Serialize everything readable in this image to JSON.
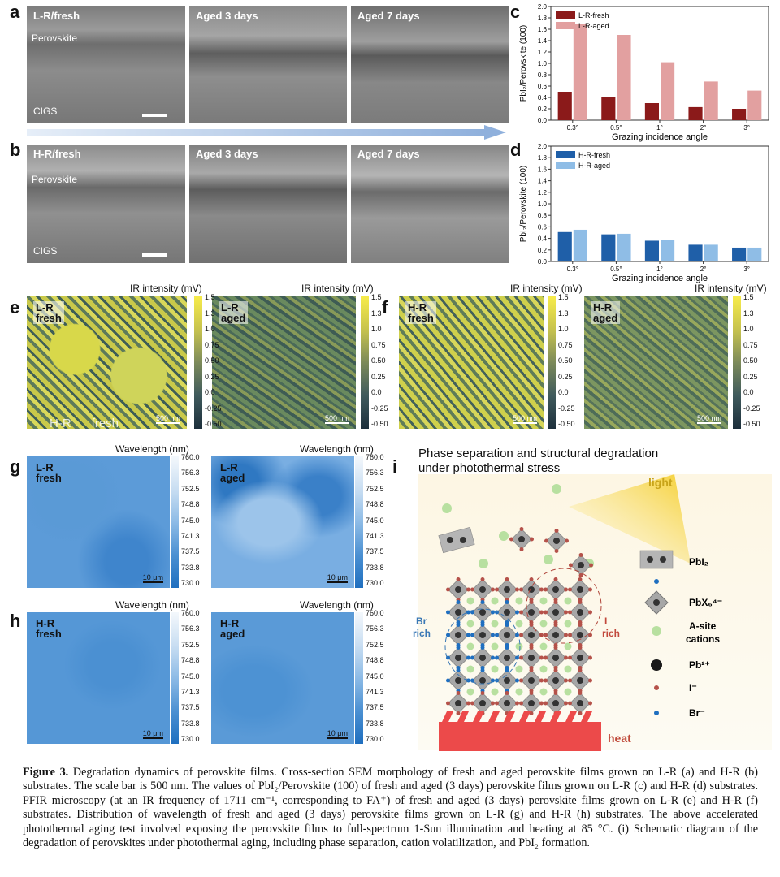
{
  "panels": {
    "a": "a",
    "b": "b",
    "c": "c",
    "d": "d",
    "e": "e",
    "f": "f",
    "g": "g",
    "h": "h",
    "i": "i"
  },
  "sem_a": [
    {
      "label": "L-R/fresh"
    },
    {
      "label": "Aged 3 days"
    },
    {
      "label": "Aged 7 days"
    }
  ],
  "sem_b": [
    {
      "label": "H-R/fresh"
    },
    {
      "label": "Aged 3 days"
    },
    {
      "label": "Aged 7 days"
    }
  ],
  "layers": {
    "perovskite": "Perovskite",
    "cigs": "CIGS"
  },
  "chart_data": [
    {
      "type": "bar",
      "panel": "c",
      "categories": [
        "0.3°",
        "0.5°",
        "1°",
        "2°",
        "3°"
      ],
      "series": [
        {
          "name": "L-R-fresh",
          "values": [
            0.5,
            0.4,
            0.3,
            0.23,
            0.2
          ],
          "color": "#8b1a1a"
        },
        {
          "name": "L-R-aged",
          "values": [
            1.7,
            1.5,
            1.02,
            0.68,
            0.52
          ],
          "color": "#e2a0a0"
        }
      ],
      "ylabel": "PbI₂/Perovskite (100)",
      "xlabel": "Grazing incidence angle",
      "ylim": [
        0,
        2.0
      ],
      "yticks": [
        "0.0",
        "0.2",
        "0.4",
        "0.6",
        "0.8",
        "1.0",
        "1.2",
        "1.4",
        "1.6",
        "1.8",
        "2.0"
      ],
      "legend": "top-left"
    },
    {
      "type": "bar",
      "panel": "d",
      "categories": [
        "0.3°",
        "0.5°",
        "1°",
        "2°",
        "3°"
      ],
      "series": [
        {
          "name": "H-R-fresh",
          "values": [
            0.51,
            0.47,
            0.36,
            0.29,
            0.24
          ],
          "color": "#1f5fa8"
        },
        {
          "name": "H-R-aged",
          "values": [
            0.55,
            0.48,
            0.37,
            0.29,
            0.24
          ],
          "color": "#8fbde6"
        }
      ],
      "ylabel": "PbI₂/Perovskite (100)",
      "xlabel": "Grazing incidence angle",
      "ylim": [
        0,
        2.0
      ],
      "yticks": [
        "0.0",
        "0.2",
        "0.4",
        "0.6",
        "0.8",
        "1.0",
        "1.2",
        "1.4",
        "1.6",
        "1.8",
        "2.0"
      ],
      "legend": "top-left"
    }
  ],
  "ir_maps": [
    {
      "line1": "L-R",
      "line2": "fresh"
    },
    {
      "line1": "L-R",
      "line2": "aged"
    },
    {
      "line1": "H-R",
      "line2": "fresh"
    },
    {
      "line1": "H-R",
      "line2": "aged"
    }
  ],
  "ir_colorbar": {
    "title": "IR intensity (mV)",
    "ticks": [
      "1.5",
      "1.3",
      "1.0",
      "0.75",
      "0.50",
      "0.25",
      "0.0",
      "-0.25",
      "-0.50"
    ],
    "scalebar": "500 nm",
    "overlay_text": "H-R      fresh"
  },
  "wl_maps": [
    {
      "line1": "L-R",
      "line2": "fresh"
    },
    {
      "line1": "L-R",
      "line2": "aged"
    },
    {
      "line1": "H-R",
      "line2": "fresh"
    },
    {
      "line1": "H-R",
      "line2": "aged"
    }
  ],
  "wl_colorbar": {
    "title": "Wavelength (nm)",
    "ticks": [
      "760.0",
      "756.3",
      "752.5",
      "748.8",
      "745.0",
      "741.3",
      "737.5",
      "733.8",
      "730.0"
    ],
    "scalebar": "10 μm"
  },
  "schematic": {
    "title_line1": "Phase separation and structural degradation",
    "title_line2": "under photothermal stress",
    "light": "light",
    "heat": "heat",
    "br_rich": "Br\nrich",
    "i_rich": "I\nrich",
    "legend": [
      {
        "name": "pbi2",
        "label": "PbI₂"
      },
      {
        "name": "pbx6",
        "label": "PbX₆⁴⁻"
      },
      {
        "name": "a-site",
        "label": "A-site cations"
      },
      {
        "name": "pb",
        "label": "Pb²⁺"
      },
      {
        "name": "iodide",
        "label": "I⁻"
      },
      {
        "name": "bromide",
        "label": "Br⁻"
      }
    ]
  },
  "caption": {
    "label": "Figure 3.",
    "text": "Degradation dynamics of perovskite films. Cross-section SEM morphology of fresh and aged perovskite films grown on L-R (a) and H-R (b) substrates. The scale bar is 500 nm. The values of PbI₂/Perovskite (100) of fresh and aged (3 days) perovskite films grown on L-R (c) and H-R (d) substrates. PFIR microscopy (at an IR frequency of 1711 cm⁻¹, corresponding to FA⁺) of fresh and aged (3 days) perovskite films grown on L-R (e) and H-R (f) substrates. Distribution of wavelength of fresh and aged (3 days) perovskite films grown on L-R (g) and H-R (h) substrates. The above accelerated photothermal aging test involved exposing the perovskite films to full-spectrum 1-Sun illumination and heating at 85 °C. (i) Schematic diagram of the degradation of perovskites under photothermal aging, including phase separation, cation volatilization, and PbI₂ formation."
  }
}
